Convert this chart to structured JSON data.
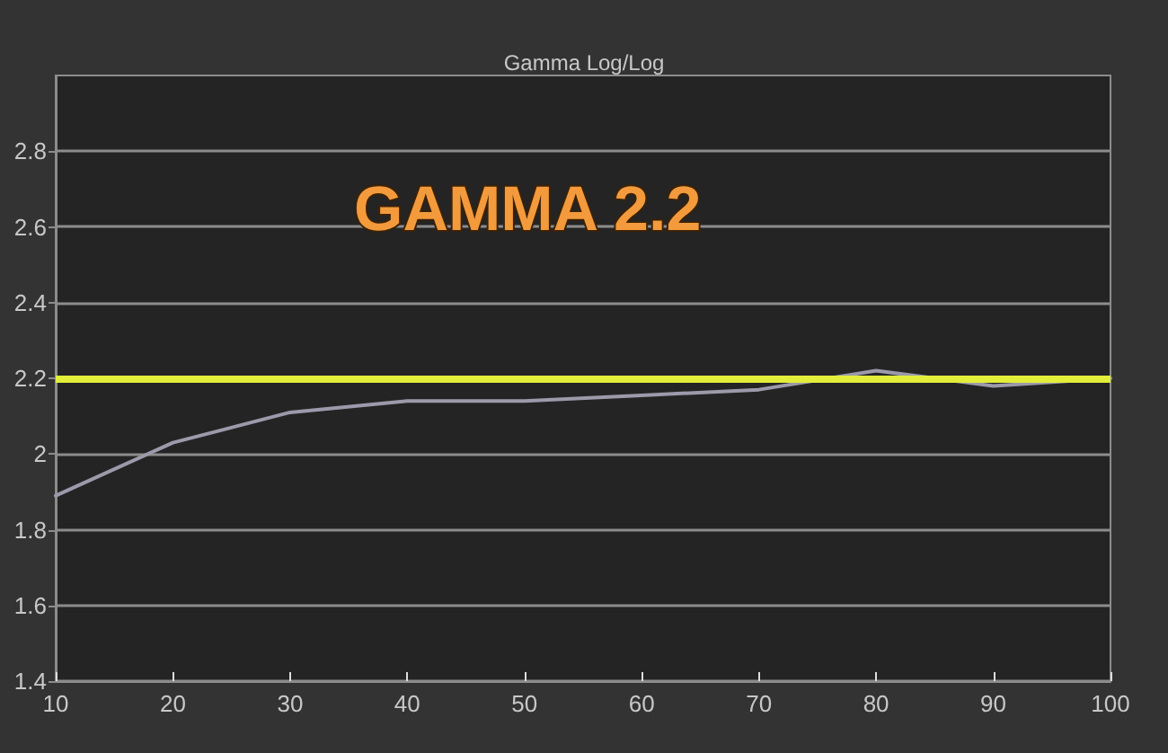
{
  "chart_data": {
    "type": "line",
    "title": "Gamma Log/Log",
    "annotations": [
      "GAMMA 2.2"
    ],
    "x": [
      10,
      20,
      30,
      40,
      50,
      60,
      70,
      80,
      90,
      100
    ],
    "series": [
      {
        "color": "#9c9aaa",
        "values": [
          1.89,
          2.03,
          2.11,
          2.14,
          2.14,
          2.155,
          2.17,
          2.22,
          2.18,
          2.2
        ]
      }
    ],
    "xlim": [
      10,
      100
    ],
    "xticks": [
      10,
      20,
      30,
      40,
      50,
      60,
      70,
      80,
      90,
      100
    ],
    "ylim": [
      1.4,
      3.0
    ],
    "yticks": [
      1.4,
      1.6,
      1.8,
      2,
      2.2,
      2.4,
      2.6,
      2.8
    ],
    "grid": "y",
    "marker": "none",
    "line_style": "solid",
    "ref_lines": [
      {
        "axis": "y",
        "value": 2.2,
        "color": "#e2ee3a"
      }
    ]
  }
}
